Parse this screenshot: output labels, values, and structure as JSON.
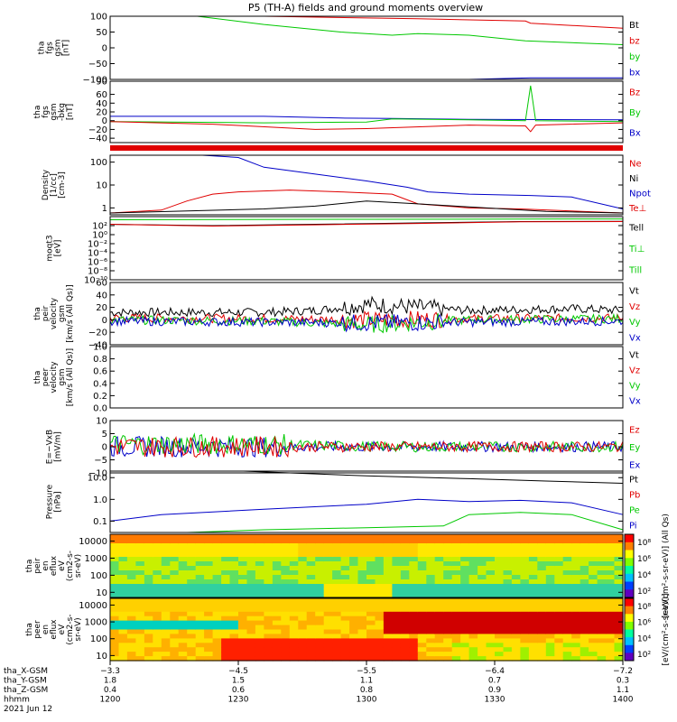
{
  "title": "P5 (TH-A) fields and ground moments overview",
  "colors": {
    "black": "#000000",
    "red": "#e00000",
    "green": "#00c800",
    "blue": "#0000c8"
  },
  "chart_data": [
    {
      "type": "line",
      "ylabel": [
        "tha",
        "fgs",
        "gsm",
        "[nT]"
      ],
      "ylim": [
        -100,
        100
      ],
      "log": false,
      "yticks": [
        "100",
        "50",
        "0",
        "−50",
        "−100"
      ],
      "ytick_values": [
        100,
        50,
        0,
        -50,
        -100
      ],
      "legend": [
        {
          "name": "Bt",
          "color": "black"
        },
        {
          "name": "bz",
          "color": "red"
        },
        {
          "name": "by",
          "color": "green"
        },
        {
          "name": "bx",
          "color": "blue"
        }
      ],
      "series": [
        {
          "name": "bz",
          "color": "red",
          "points": [
            [
              0.3,
              100
            ],
            [
              0.6,
              92
            ],
            [
              0.81,
              85
            ],
            [
              0.82,
              78
            ],
            [
              1,
              62
            ]
          ]
        },
        {
          "name": "by",
          "color": "green",
          "points": [
            [
              0.17,
              100
            ],
            [
              0.3,
              74
            ],
            [
              0.45,
              50
            ],
            [
              0.55,
              40
            ],
            [
              0.6,
              45
            ],
            [
              0.7,
              40
            ],
            [
              0.81,
              22
            ],
            [
              1,
              10
            ]
          ]
        },
        {
          "name": "bx",
          "color": "blue",
          "points": [
            [
              0,
              -100
            ],
            [
              0.7,
              -100
            ],
            [
              0.82,
              -95
            ],
            [
              1,
              -95
            ]
          ]
        }
      ]
    },
    {
      "type": "line",
      "ylabel": [
        "tha",
        "fgs",
        "gsm",
        "-bkg",
        "[nT]"
      ],
      "ylim": [
        -50,
        90
      ],
      "log": false,
      "yticks": [
        "90",
        "60",
        "40",
        "20",
        "0",
        "−20",
        "−40"
      ],
      "ytick_values": [
        90,
        60,
        40,
        20,
        0,
        -20,
        -40
      ],
      "legend": [
        {
          "name": "Bz",
          "color": "red"
        },
        {
          "name": "By",
          "color": "green"
        },
        {
          "name": "Bx",
          "color": "blue"
        }
      ],
      "series": [
        {
          "name": "Bx",
          "color": "blue",
          "points": [
            [
              0,
              10
            ],
            [
              0.3,
              10
            ],
            [
              0.45,
              6
            ],
            [
              0.55,
              5
            ],
            [
              0.7,
              3
            ],
            [
              1,
              2
            ]
          ]
        },
        {
          "name": "By",
          "color": "green",
          "points": [
            [
              0,
              -2
            ],
            [
              0.3,
              -5
            ],
            [
              0.5,
              -3
            ],
            [
              0.55,
              4
            ],
            [
              0.7,
              2
            ],
            [
              0.81,
              0
            ],
            [
              0.82,
              80
            ],
            [
              0.83,
              0
            ],
            [
              1,
              -2
            ]
          ]
        },
        {
          "name": "Bz",
          "color": "red",
          "points": [
            [
              0,
              -2
            ],
            [
              0.2,
              -8
            ],
            [
              0.4,
              -20
            ],
            [
              0.5,
              -18
            ],
            [
              0.7,
              -10
            ],
            [
              0.81,
              -12
            ],
            [
              0.82,
              -25
            ],
            [
              0.83,
              -10
            ],
            [
              1,
              -5
            ]
          ]
        }
      ]
    },
    {
      "type": "line",
      "ylabel": [
        "Density",
        "[1/cc]",
        "[cm-3]"
      ],
      "ylim": [
        0.5,
        200
      ],
      "log": true,
      "yticks": [
        "100",
        "10",
        "1"
      ],
      "ytick_values": [
        100,
        10,
        1
      ],
      "legend": [
        {
          "name": "Ne",
          "color": "red"
        },
        {
          "name": "Ni",
          "color": "black"
        },
        {
          "name": "Npot",
          "color": "blue"
        },
        {
          "name": "Te⊥",
          "color": "red"
        }
      ],
      "series": [
        {
          "name": "Npot",
          "color": "blue",
          "points": [
            [
              0.18,
              200
            ],
            [
              0.25,
              160
            ],
            [
              0.3,
              60
            ],
            [
              0.4,
              30
            ],
            [
              0.5,
              15
            ],
            [
              0.58,
              8
            ],
            [
              0.62,
              5
            ],
            [
              0.7,
              4
            ],
            [
              0.82,
              3.5
            ],
            [
              0.9,
              3
            ],
            [
              1,
              0.9
            ]
          ]
        },
        {
          "name": "Ne",
          "color": "red",
          "points": [
            [
              0,
              0.6
            ],
            [
              0.1,
              0.8
            ],
            [
              0.15,
              2
            ],
            [
              0.2,
              4
            ],
            [
              0.25,
              5
            ],
            [
              0.35,
              6
            ],
            [
              0.45,
              5
            ],
            [
              0.55,
              4
            ],
            [
              0.6,
              1.5
            ],
            [
              0.7,
              1
            ],
            [
              0.8,
              0.9
            ],
            [
              1,
              0.6
            ]
          ]
        },
        {
          "name": "Ni",
          "color": "black",
          "points": [
            [
              0,
              0.6
            ],
            [
              0.3,
              0.9
            ],
            [
              0.4,
              1.2
            ],
            [
              0.5,
              2
            ],
            [
              0.6,
              1.5
            ],
            [
              0.7,
              1.1
            ],
            [
              0.85,
              0.7
            ],
            [
              1,
              0.6
            ]
          ]
        }
      ]
    },
    {
      "type": "line",
      "ylabel": [
        "moqt3",
        "[eV]"
      ],
      "ylim": [
        1e-10,
        10000.0
      ],
      "log": true,
      "yticks": [
        "10²",
        "10⁰",
        "10⁻²",
        "10⁻⁴",
        "10⁻⁶",
        "10⁻⁸",
        "10⁻¹⁰"
      ],
      "ytick_values": [
        100,
        1,
        0.01,
        0.0001,
        1e-06,
        1e-08,
        1e-10
      ],
      "legend": [
        {
          "name": "Tell",
          "color": "black"
        },
        {
          "name": "Ti⊥",
          "color": "green"
        },
        {
          "name": "Till",
          "color": "green"
        }
      ],
      "series": [
        {
          "name": "Tell",
          "color": "black",
          "points": [
            [
              0,
              200
            ],
            [
              0.2,
              100
            ],
            [
              0.4,
              200
            ],
            [
              0.6,
              400
            ],
            [
              0.8,
              800
            ],
            [
              1,
              900
            ]
          ]
        },
        {
          "name": "Te⊥",
          "color": "red",
          "points": [
            [
              0,
              200
            ],
            [
              0.2,
              80
            ],
            [
              0.4,
              150
            ],
            [
              0.6,
              300
            ],
            [
              0.8,
              700
            ],
            [
              1,
              800
            ]
          ]
        },
        {
          "name": "Ti⊥",
          "color": "green",
          "points": [
            [
              0,
              2000
            ],
            [
              0.5,
              2500
            ],
            [
              1,
              3000
            ]
          ]
        }
      ]
    },
    {
      "type": "line",
      "ylabel": [
        "tha",
        "peir",
        "velocity",
        "gsm",
        "[km/s (All Qs)]"
      ],
      "ylim": [
        -40,
        60
      ],
      "log": false,
      "yticks": [
        "60",
        "40",
        "20",
        "0",
        "−20",
        "−40"
      ],
      "ytick_values": [
        60,
        40,
        20,
        0,
        -20,
        -40
      ],
      "legend": [
        {
          "name": "Vt",
          "color": "black"
        },
        {
          "name": "Vz",
          "color": "red"
        },
        {
          "name": "Vy",
          "color": "green"
        },
        {
          "name": "Vx",
          "color": "blue"
        }
      ],
      "series": [
        {
          "name": "Vt",
          "color": "black",
          "points": [
            [
              0,
              12
            ],
            [
              0.3,
              12
            ],
            [
              0.4,
              15
            ],
            [
              0.5,
              25
            ],
            [
              0.6,
              20
            ],
            [
              0.7,
              15
            ],
            [
              0.9,
              18
            ],
            [
              1,
              15
            ]
          ]
        },
        {
          "name": "Vz",
          "color": "red",
          "points": [
            [
              0,
              3
            ],
            [
              0.3,
              2
            ],
            [
              0.5,
              0
            ],
            [
              0.7,
              2
            ],
            [
              1,
              3
            ]
          ]
        },
        {
          "name": "Vy",
          "color": "green",
          "points": [
            [
              0,
              0
            ],
            [
              0.3,
              -2
            ],
            [
              0.5,
              -8
            ],
            [
              0.7,
              0
            ],
            [
              1,
              2
            ]
          ]
        },
        {
          "name": "Vx",
          "color": "blue",
          "points": [
            [
              0,
              -2
            ],
            [
              0.5,
              -5
            ],
            [
              1,
              -2
            ]
          ]
        }
      ]
    },
    {
      "type": "line",
      "ylabel": [
        "tha",
        "peer",
        "velocity",
        "gsm",
        "[km/s (All Qs)]"
      ],
      "ylim": [
        0,
        1
      ],
      "log": false,
      "yticks": [
        "1.0",
        "0.8",
        "0.6",
        "0.4",
        "0.2",
        "0.0"
      ],
      "ytick_values": [
        1,
        0.8,
        0.6,
        0.4,
        0.2,
        0
      ],
      "legend": [
        {
          "name": "Vt",
          "color": "black"
        },
        {
          "name": "Vz",
          "color": "red"
        },
        {
          "name": "Vy",
          "color": "green"
        },
        {
          "name": "Vx",
          "color": "blue"
        }
      ],
      "series": []
    },
    {
      "type": "line",
      "ylabel": [
        "E=−VxB",
        "[mV/m]"
      ],
      "ylim": [
        -10,
        10
      ],
      "log": false,
      "yticks": [
        "10",
        "5",
        "0",
        "−5",
        "−10"
      ],
      "ytick_values": [
        10,
        5,
        0,
        -5,
        -10
      ],
      "legend": [
        {
          "name": "Ez",
          "color": "red"
        },
        {
          "name": "Ey",
          "color": "green"
        },
        {
          "name": "Ex",
          "color": "blue"
        }
      ],
      "series": [
        {
          "name": "Ex",
          "color": "blue",
          "points": [
            [
              0,
              0
            ],
            [
              1,
              0
            ]
          ]
        },
        {
          "name": "Ey",
          "color": "green",
          "points": [
            [
              0,
              1
            ],
            [
              0.3,
              1
            ],
            [
              0.5,
              0
            ],
            [
              1,
              0
            ]
          ]
        },
        {
          "name": "Ez",
          "color": "red",
          "points": [
            [
              0,
              0
            ],
            [
              1,
              0
            ]
          ]
        }
      ]
    },
    {
      "type": "line",
      "ylabel": [
        "Pressure",
        "[nPa]"
      ],
      "ylim": [
        0.03,
        20
      ],
      "log": true,
      "yticks": [
        "10.0",
        "1.0",
        "0.1"
      ],
      "ytick_values": [
        10,
        1,
        0.1
      ],
      "legend": [
        {
          "name": "Pt",
          "color": "black"
        },
        {
          "name": "Pb",
          "color": "red"
        },
        {
          "name": "Pe",
          "color": "green"
        },
        {
          "name": "Pi",
          "color": "blue"
        }
      ],
      "series": [
        {
          "name": "Pt",
          "color": "black",
          "points": [
            [
              0.26,
              20
            ],
            [
              0.5,
              12
            ],
            [
              0.7,
              9
            ],
            [
              0.85,
              7
            ],
            [
              1,
              5.5
            ]
          ]
        },
        {
          "name": "Pi",
          "color": "blue",
          "points": [
            [
              0,
              0.1
            ],
            [
              0.1,
              0.2
            ],
            [
              0.3,
              0.35
            ],
            [
              0.5,
              0.6
            ],
            [
              0.6,
              1
            ],
            [
              0.7,
              0.8
            ],
            [
              0.8,
              0.9
            ],
            [
              0.9,
              0.7
            ],
            [
              1,
              0.2
            ]
          ]
        },
        {
          "name": "Pe",
          "color": "green",
          "points": [
            [
              0,
              0.02
            ],
            [
              0.15,
              0.03
            ],
            [
              0.3,
              0.04
            ],
            [
              0.5,
              0.05
            ],
            [
              0.65,
              0.06
            ],
            [
              0.7,
              0.2
            ],
            [
              0.8,
              0.25
            ],
            [
              0.9,
              0.2
            ],
            [
              1,
              0.04
            ]
          ]
        }
      ]
    },
    {
      "type": "heatmap",
      "ylabel": [
        "tha",
        "peir",
        "en",
        "eflux",
        "eV",
        "(cm2-s-",
        "sr-eV)"
      ],
      "ylim": [
        5,
        25000
      ],
      "log": true,
      "yticks": [
        "10000",
        "1000",
        "100",
        "10"
      ],
      "ytick_values": [
        10000,
        1000,
        100,
        10
      ],
      "colorbar": {
        "ticks": [
          "10⁸",
          "10⁶",
          "10⁴",
          "10²"
        ],
        "label": "[eV/(cm²-s-sr-eV)] (All Qs)"
      }
    },
    {
      "type": "heatmap",
      "ylabel": [
        "tha",
        "peer",
        "en",
        "eflux",
        "eV",
        "(cm2-s-",
        "sr-eV)"
      ],
      "ylim": [
        5,
        25000
      ],
      "log": true,
      "yticks": [
        "10000",
        "1000",
        "100",
        "10"
      ],
      "ytick_values": [
        10000,
        1000,
        100,
        10
      ],
      "colorbar": {
        "ticks": [
          "10⁸",
          "10⁶",
          "10⁴",
          "10²"
        ],
        "label": "[eV/(cm²-s-sr-eV)]"
      }
    }
  ],
  "xaxis": {
    "rows": [
      {
        "label": "tha_X-GSM",
        "values": [
          "−3.3",
          "−4.5",
          "−5.5",
          "−6.4",
          "−7.2"
        ]
      },
      {
        "label": "tha_Y-GSM",
        "values": [
          "1.8",
          "1.5",
          "1.1",
          "0.7",
          "0.3"
        ]
      },
      {
        "label": "tha_Z-GSM",
        "values": [
          "0.4",
          "0.6",
          "0.8",
          "0.9",
          "1.1"
        ]
      },
      {
        "label": "hhmm",
        "values": [
          "1200",
          "1230",
          "1300",
          "1330",
          "1400"
        ]
      }
    ],
    "date": "2021 Jun 12"
  }
}
